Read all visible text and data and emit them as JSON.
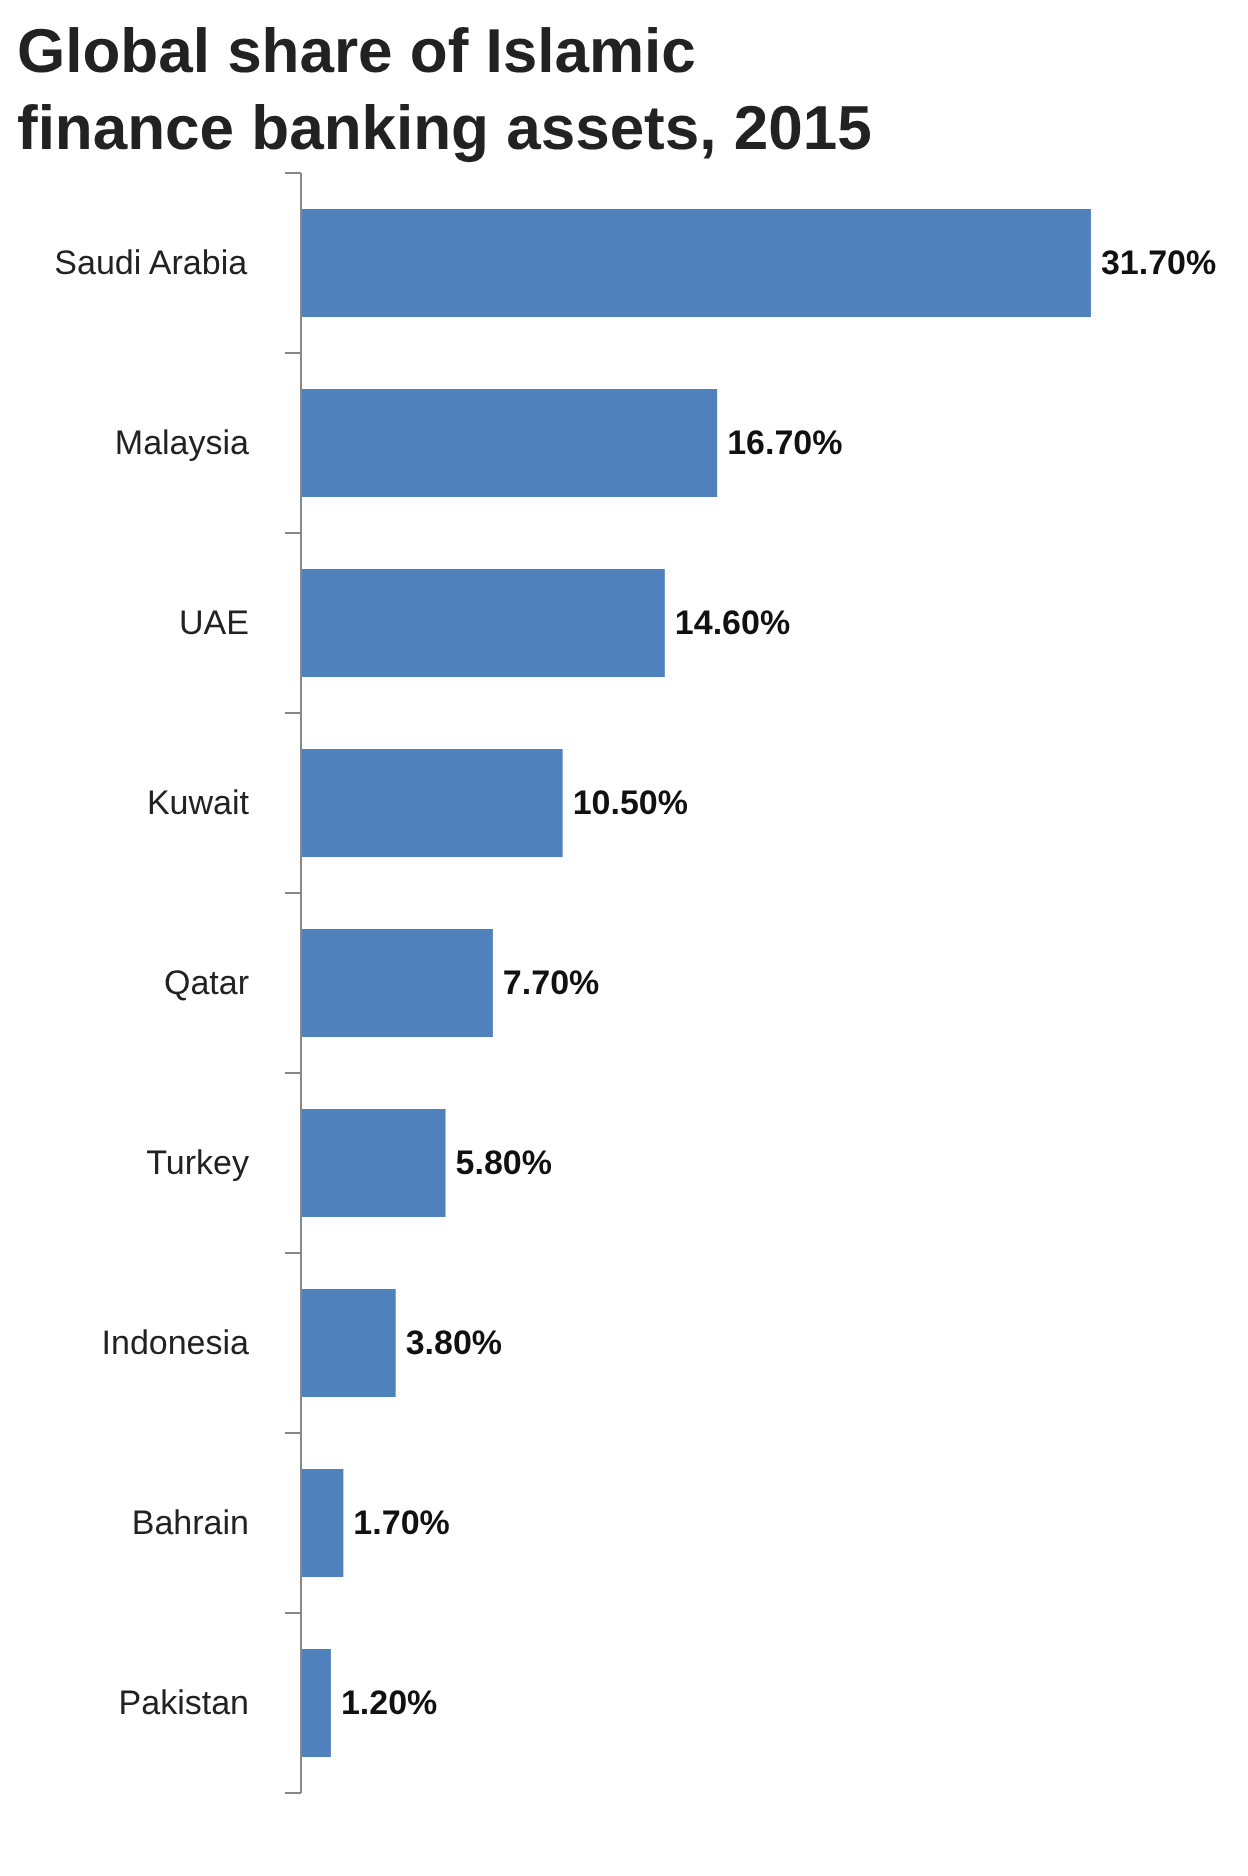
{
  "chart_data": {
    "type": "bar",
    "orientation": "horizontal",
    "title": "Global share of Islamic finance banking assets, 2015",
    "categories": [
      "Saudi Arabia",
      "Malaysia",
      "UAE",
      "Kuwait",
      "Qatar",
      "Turkey",
      "Indonesia",
      "Bahrain",
      "Pakistan"
    ],
    "values": [
      31.7,
      16.7,
      14.6,
      10.5,
      7.7,
      5.8,
      3.8,
      1.7,
      1.2
    ],
    "value_labels": [
      "31.70%",
      "16.70%",
      "14.60%",
      "10.50%",
      "7.70%",
      "5.80%",
      "3.80%",
      "1.70%",
      "1.20%"
    ],
    "color": "#4f81bd",
    "grid": false
  }
}
